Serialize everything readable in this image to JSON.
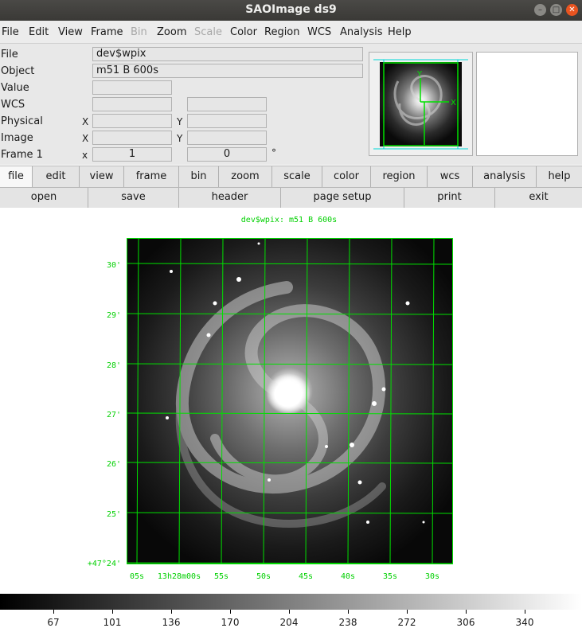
{
  "window": {
    "title": "SAOImage ds9"
  },
  "menubar": [
    {
      "label": "File",
      "enabled": true
    },
    {
      "label": "Edit",
      "enabled": true
    },
    {
      "label": "View",
      "enabled": true
    },
    {
      "label": "Frame",
      "enabled": true
    },
    {
      "label": "Bin",
      "enabled": false
    },
    {
      "label": "Zoom",
      "enabled": true
    },
    {
      "label": "Scale",
      "enabled": false
    },
    {
      "label": "Color",
      "enabled": true
    },
    {
      "label": "Region",
      "enabled": true
    },
    {
      "label": "WCS",
      "enabled": true
    },
    {
      "label": "Analysis",
      "enabled": true
    },
    {
      "label": "Help",
      "enabled": true
    }
  ],
  "info": {
    "file_label": "File",
    "file_value": "dev$wpix",
    "object_label": "Object",
    "object_value": "m51  B  600s",
    "value_label": "Value",
    "wcs_label": "WCS",
    "physical_label": "Physical",
    "image_label": "Image",
    "frame_label": "Frame 1",
    "x_label": "X",
    "y_label": "Y",
    "xs_label": "x",
    "frame_zoom": "1",
    "frame_angle": "0",
    "degree_symbol": "°"
  },
  "buttonbar": {
    "main": [
      "file",
      "edit",
      "view",
      "frame",
      "bin",
      "zoom",
      "scale",
      "color",
      "region",
      "wcs",
      "analysis",
      "help"
    ],
    "active": "file",
    "file": [
      "open",
      "save",
      "header",
      "page setup",
      "print",
      "exit"
    ]
  },
  "image": {
    "title": "dev$wpix: m51  B  600s",
    "dec_labels": [
      "30'",
      "29'",
      "28'",
      "27'",
      "26'",
      "25'",
      "+47°24'"
    ],
    "ra_labels": [
      "05s",
      "13h28m00s",
      "55s",
      "50s",
      "45s",
      "40s",
      "35s",
      "30s"
    ],
    "compass": {
      "x": "X",
      "y": "Y"
    }
  },
  "colorbar": {
    "ticks": [
      "67",
      "101",
      "136",
      "170",
      "204",
      "238",
      "272",
      "306",
      "340"
    ],
    "colormap": "grey"
  },
  "colors": {
    "grid": "#00e000",
    "accent": "#e95420",
    "thumb_frame": "#00c8c8"
  }
}
